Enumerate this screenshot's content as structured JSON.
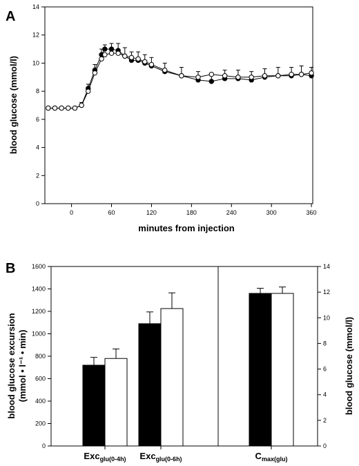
{
  "chart_data": [
    {
      "panel": "A",
      "type": "line",
      "xlabel": "minutes from injection",
      "ylabel": "blood glucose (mmol/l)",
      "xlim": [
        -40,
        362
      ],
      "ylim": [
        0,
        14
      ],
      "xticks": [
        0,
        60,
        120,
        180,
        240,
        300,
        360
      ],
      "yticks": [
        0,
        2,
        4,
        6,
        8,
        10,
        12,
        14
      ],
      "grid": false,
      "series": [
        {
          "marker": "filled-circle",
          "x": [
            -35,
            -25,
            -15,
            -5,
            5,
            15,
            25,
            35,
            45,
            50,
            60,
            70,
            80,
            90,
            100,
            110,
            120,
            140,
            165,
            190,
            210,
            230,
            250,
            270,
            290,
            310,
            330,
            345,
            360
          ],
          "y": [
            6.8,
            6.8,
            6.8,
            6.8,
            6.8,
            7.0,
            8.2,
            9.5,
            10.6,
            11.0,
            11.0,
            10.9,
            10.5,
            10.2,
            10.2,
            10.0,
            9.8,
            9.4,
            9.1,
            8.8,
            8.7,
            8.9,
            8.9,
            8.8,
            9.0,
            9.1,
            9.1,
            9.2,
            9.1
          ],
          "err": [
            0.1,
            0.1,
            0.1,
            0.1,
            0.1,
            0.2,
            0.3,
            0.4,
            0.4,
            0.3,
            0.4,
            0.5,
            0.6,
            0.6,
            0.6,
            0.6,
            0.6,
            0.6,
            0.6,
            0.6,
            0.6,
            0.6,
            0.6,
            0.6,
            0.6,
            0.6,
            0.6,
            0.6,
            0.6
          ]
        },
        {
          "marker": "open-circle",
          "x": [
            -35,
            -25,
            -15,
            -5,
            5,
            15,
            25,
            35,
            45,
            50,
            60,
            70,
            80,
            90,
            100,
            110,
            120,
            140,
            165,
            190,
            210,
            230,
            250,
            270,
            290,
            310,
            330,
            345,
            360
          ],
          "y": [
            6.8,
            6.8,
            6.8,
            6.8,
            6.8,
            7.0,
            8.0,
            9.3,
            10.3,
            10.6,
            10.7,
            10.7,
            10.5,
            10.4,
            10.3,
            10.1,
            9.9,
            9.5,
            9.1,
            9.0,
            9.2,
            9.1,
            9.0,
            9.0,
            9.1,
            9.1,
            9.2,
            9.2,
            9.3
          ]
        }
      ]
    },
    {
      "panel": "B",
      "type": "bar",
      "ylabel": "blood glucose excursion",
      "ylabel_line2": "(mmol • l⁻¹ • min)",
      "ylim": [
        0,
        1600
      ],
      "yticks": [
        0,
        200,
        400,
        600,
        800,
        1000,
        1200,
        1400,
        1600
      ],
      "y2label": "blood glucose (mmol/l)",
      "y2lim": [
        0,
        14
      ],
      "y2ticks": [
        0,
        2,
        4,
        6,
        8,
        10,
        12,
        14
      ],
      "categories": [
        {
          "main": "Exc",
          "sub": "glu(0-4h)"
        },
        {
          "main": "Exc",
          "sub": "glu(0-6h)"
        },
        {
          "main": "C",
          "sub": "max(glu)"
        }
      ],
      "series": [
        {
          "fill": "#000000",
          "values": [
            720,
            1090,
            11.9
          ],
          "err": [
            70,
            105,
            0.4
          ]
        },
        {
          "fill": "#ffffff",
          "values": [
            780,
            1225,
            11.9
          ],
          "err": [
            85,
            140,
            0.5
          ]
        }
      ]
    }
  ]
}
